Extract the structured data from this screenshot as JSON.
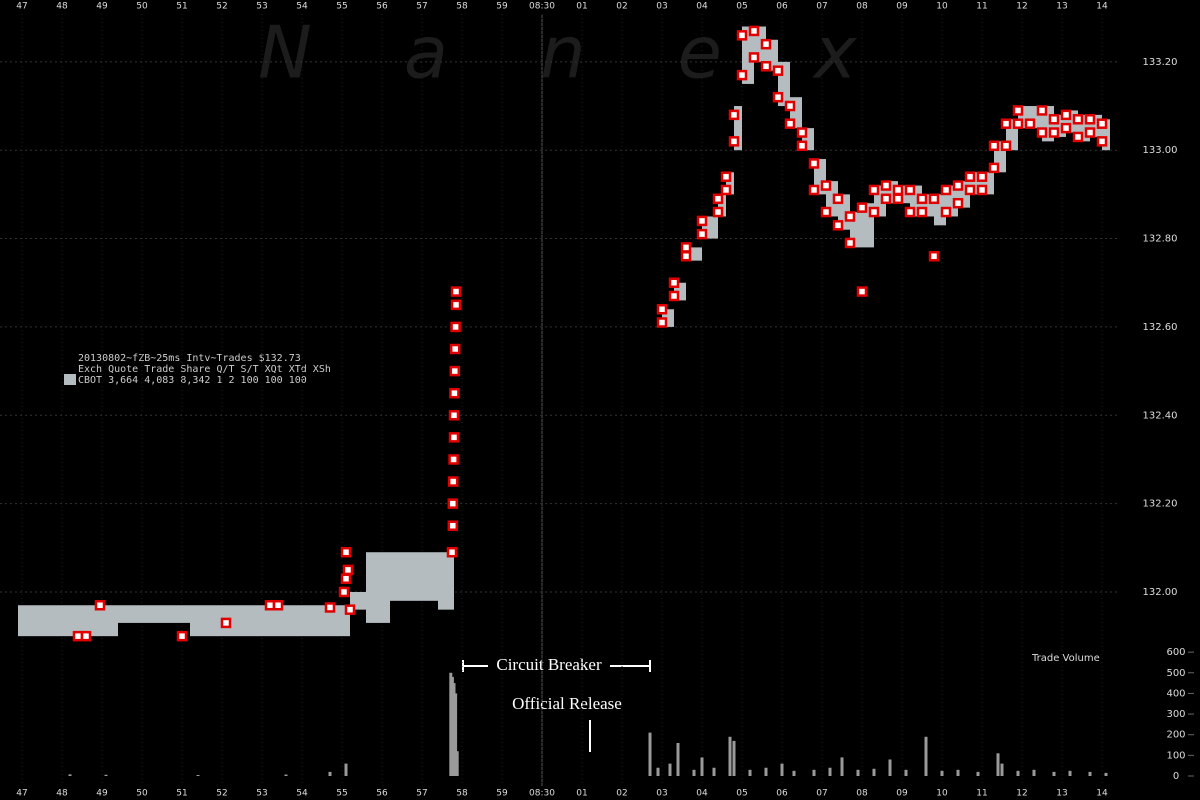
{
  "watermark": "Nanex",
  "info": {
    "title": "20130802~fZB~25ms Intv~Trades $132.73",
    "header": "Exch Quote Trade Share  Q/T   S/T  XQt XTd XSh",
    "row": "CBOT 3,664 4,083 8,342     1     2 100 100 100"
  },
  "annotations": {
    "circuit_breaker": "Circuit Breaker",
    "official_release": "Official Release",
    "volume_label": "Trade Volume"
  },
  "chart_data": [
    {
      "type": "scatter",
      "xlim": [
        46.45,
        74.45
      ],
      "xticks": [
        47,
        48,
        49,
        50,
        51,
        52,
        53,
        54,
        55,
        56,
        57,
        58,
        59,
        {
          "value": 60,
          "label": "08:30"
        },
        {
          "value": 61,
          "label": "01"
        },
        {
          "value": 62,
          "label": "02"
        },
        {
          "value": 63,
          "label": "03"
        },
        {
          "value": 64,
          "label": "04"
        },
        {
          "value": 65,
          "label": "05"
        },
        {
          "value": 66,
          "label": "06"
        },
        {
          "value": 67,
          "label": "07"
        },
        {
          "value": 68,
          "label": "08"
        },
        {
          "value": 69,
          "label": "09"
        },
        {
          "value": 70,
          "label": "10"
        },
        {
          "value": 71,
          "label": "11"
        },
        {
          "value": 72,
          "label": "12"
        },
        {
          "value": 73,
          "label": "13"
        },
        {
          "value": 74,
          "label": "14"
        }
      ],
      "ylim": [
        131.88,
        133.34
      ],
      "yticks": [
        {
          "value": 132.0,
          "label": "132.00"
        },
        {
          "value": 132.2,
          "label": "132.20"
        },
        {
          "value": 132.4,
          "label": "132.40"
        },
        {
          "value": 132.6,
          "label": "132.60"
        },
        {
          "value": 132.8,
          "label": "132.80"
        },
        {
          "value": 133.0,
          "label": "133.00"
        },
        {
          "value": 133.2,
          "label": "133.20"
        }
      ],
      "grid": true,
      "bands": [
        {
          "color": "#b4bcc0",
          "x": [
            46.9,
            49.4,
            51.2,
            53.1,
            55.2,
            55.6,
            56.2,
            57.4,
            57.8
          ],
          "low": [
            131.9,
            131.93,
            131.9,
            131.9,
            131.96,
            131.93,
            131.98,
            131.96,
            131.96
          ],
          "high": [
            131.97,
            131.97,
            131.97,
            131.97,
            132.0,
            132.09,
            132.09,
            132.09,
            132.09
          ]
        },
        {
          "color": "#b4bcc0",
          "x": [
            63.0,
            63.3,
            63.6,
            64.0,
            64.4,
            64.6,
            64.8,
            65.0,
            65.3,
            65.6,
            65.9,
            66.2,
            66.5,
            66.8,
            67.1,
            67.4,
            67.7,
            68.0,
            68.3,
            68.6,
            68.9,
            69.2,
            69.5,
            69.8,
            70.1,
            70.4,
            70.7,
            71.0,
            71.3,
            71.6,
            71.9,
            72.2,
            72.5,
            72.8,
            73.1,
            73.4,
            73.7,
            74.0,
            74.2
          ],
          "low": [
            132.6,
            132.66,
            132.75,
            132.8,
            132.85,
            132.9,
            133.0,
            133.15,
            133.2,
            133.18,
            133.1,
            133.05,
            133.0,
            132.9,
            132.85,
            132.82,
            132.78,
            132.78,
            132.85,
            132.88,
            132.88,
            132.85,
            132.85,
            132.83,
            132.85,
            132.87,
            132.9,
            132.9,
            132.95,
            133.0,
            133.05,
            133.05,
            133.02,
            133.03,
            133.04,
            133.02,
            133.03,
            133.0,
            133.0
          ],
          "high": [
            132.64,
            132.7,
            132.78,
            132.85,
            132.9,
            132.95,
            133.1,
            133.28,
            133.28,
            133.25,
            133.2,
            133.12,
            133.05,
            132.98,
            132.93,
            132.9,
            132.86,
            132.88,
            132.92,
            132.93,
            132.92,
            132.92,
            132.9,
            132.9,
            132.92,
            132.93,
            132.95,
            132.95,
            133.02,
            133.07,
            133.1,
            133.1,
            133.1,
            133.08,
            133.09,
            133.08,
            133.08,
            133.07,
            133.07
          ]
        }
      ],
      "series": [
        {
          "color": "#e00000",
          "x": [
            48.4,
            48.6,
            48.95,
            51.0,
            52.1,
            53.2,
            53.4,
            54.7,
            55.1,
            55.15,
            55.1,
            55.05,
            55.2,
            57.75,
            57.77,
            57.77,
            57.78,
            57.79,
            57.8,
            57.8,
            57.81,
            57.82,
            57.83,
            57.84,
            57.85,
            57.85,
            63.0,
            63.0,
            63.3,
            63.3,
            63.6,
            63.6,
            64.0,
            64.0,
            64.4,
            64.4,
            64.6,
            64.6,
            64.8,
            64.8,
            65.0,
            65.0,
            65.3,
            65.3,
            65.6,
            65.6,
            65.9,
            65.9,
            66.2,
            66.2,
            66.5,
            66.5,
            66.8,
            66.8,
            67.1,
            67.1,
            67.4,
            67.4,
            67.7,
            67.7,
            68.0,
            68.0,
            68.3,
            68.3,
            68.6,
            68.6,
            68.9,
            68.9,
            69.2,
            69.2,
            69.5,
            69.5,
            69.8,
            69.8,
            70.1,
            70.1,
            70.4,
            70.4,
            70.7,
            70.7,
            71.0,
            71.0,
            71.3,
            71.3,
            71.6,
            71.6,
            71.9,
            71.9,
            72.2,
            72.5,
            72.5,
            72.8,
            72.8,
            73.1,
            73.1,
            73.4,
            73.4,
            73.7,
            73.7,
            74.0,
            74.0
          ],
          "values": [
            131.9,
            131.9,
            131.97,
            131.9,
            131.93,
            131.97,
            131.97,
            131.965,
            132.09,
            132.05,
            132.03,
            132.0,
            131.96,
            132.09,
            132.15,
            132.2,
            132.25,
            132.3,
            132.35,
            132.4,
            132.45,
            132.5,
            132.55,
            132.6,
            132.65,
            132.68,
            132.61,
            132.64,
            132.67,
            132.7,
            132.76,
            132.78,
            132.81,
            132.84,
            132.86,
            132.89,
            132.91,
            132.94,
            133.02,
            133.08,
            133.17,
            133.26,
            133.21,
            133.27,
            133.19,
            133.24,
            133.12,
            133.18,
            133.06,
            133.1,
            133.01,
            133.04,
            132.91,
            132.97,
            132.86,
            132.92,
            132.83,
            132.89,
            132.79,
            132.85,
            132.68,
            132.87,
            132.86,
            132.91,
            132.89,
            132.92,
            132.89,
            132.91,
            132.86,
            132.91,
            132.86,
            132.89,
            132.76,
            132.89,
            132.86,
            132.91,
            132.88,
            132.92,
            132.91,
            132.94,
            132.91,
            132.94,
            132.96,
            133.01,
            133.01,
            133.06,
            133.06,
            133.09,
            133.06,
            133.04,
            133.09,
            133.04,
            133.07,
            133.05,
            133.08,
            133.03,
            133.07,
            133.04,
            133.07,
            133.02,
            133.06
          ]
        }
      ]
    },
    {
      "type": "bar",
      "xlim": [
        46.45,
        74.45
      ],
      "ylim": [
        0,
        620
      ],
      "yticks": [
        0,
        100,
        200,
        300,
        400,
        500,
        600
      ],
      "color": "#9a9a9a",
      "x": [
        48.2,
        49.1,
        51.4,
        53.6,
        54.7,
        55.1,
        57.72,
        57.76,
        57.8,
        57.84,
        57.88,
        62.7,
        62.9,
        63.2,
        63.4,
        63.8,
        64.0,
        64.3,
        64.7,
        64.8,
        65.2,
        65.6,
        66.0,
        66.3,
        66.8,
        67.2,
        67.5,
        67.9,
        68.3,
        68.7,
        69.1,
        69.6,
        70.0,
        70.4,
        70.9,
        71.4,
        71.5,
        71.9,
        72.3,
        72.8,
        73.2,
        73.7,
        74.1
      ],
      "values": [
        8,
        6,
        5,
        7,
        20,
        60,
        500,
        480,
        450,
        400,
        120,
        210,
        40,
        60,
        160,
        30,
        90,
        40,
        190,
        170,
        30,
        40,
        60,
        25,
        30,
        40,
        90,
        30,
        35,
        80,
        30,
        190,
        25,
        30,
        20,
        110,
        60,
        25,
        30,
        20,
        25,
        20,
        15
      ]
    }
  ]
}
